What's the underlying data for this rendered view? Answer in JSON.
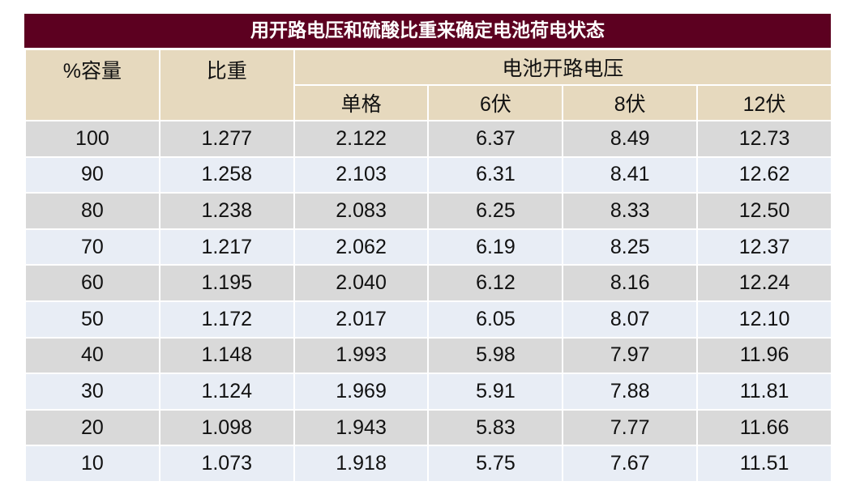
{
  "title": "用开路电压和硫酸比重来确定电池荷电状态",
  "headers": {
    "capacity": "%容量",
    "gravity": "比重",
    "ocv_group": "电池开路电压",
    "cell": "单格",
    "v6": "6伏",
    "v8": "8伏",
    "v12": "12伏"
  },
  "rows": [
    [
      "100",
      "1.277",
      "2.122",
      "6.37",
      "8.49",
      "12.73"
    ],
    [
      "90",
      "1.258",
      "2.103",
      "6.31",
      "8.41",
      "12.62"
    ],
    [
      "80",
      "1.238",
      "2.083",
      "6.25",
      "8.33",
      "12.50"
    ],
    [
      "70",
      "1.217",
      "2.062",
      "6.19",
      "8.25",
      "12.37"
    ],
    [
      "60",
      "1.195",
      "2.040",
      "6.12",
      "8.16",
      "12.24"
    ],
    [
      "50",
      "1.172",
      "2.017",
      "6.05",
      "8.07",
      "12.10"
    ],
    [
      "40",
      "1.148",
      "1.993",
      "5.98",
      "7.97",
      "11.96"
    ],
    [
      "30",
      "1.124",
      "1.969",
      "5.91",
      "7.88",
      "11.81"
    ],
    [
      "20",
      "1.098",
      "1.943",
      "5.83",
      "7.77",
      "11.66"
    ],
    [
      "10",
      "1.073",
      "1.918",
      "5.75",
      "7.67",
      "11.51"
    ]
  ],
  "colors": {
    "title_bg": "#5c0020",
    "header_bg": "#e6d9be",
    "row_gray": "#d9d9d9",
    "row_blue": "#e8edf5"
  }
}
